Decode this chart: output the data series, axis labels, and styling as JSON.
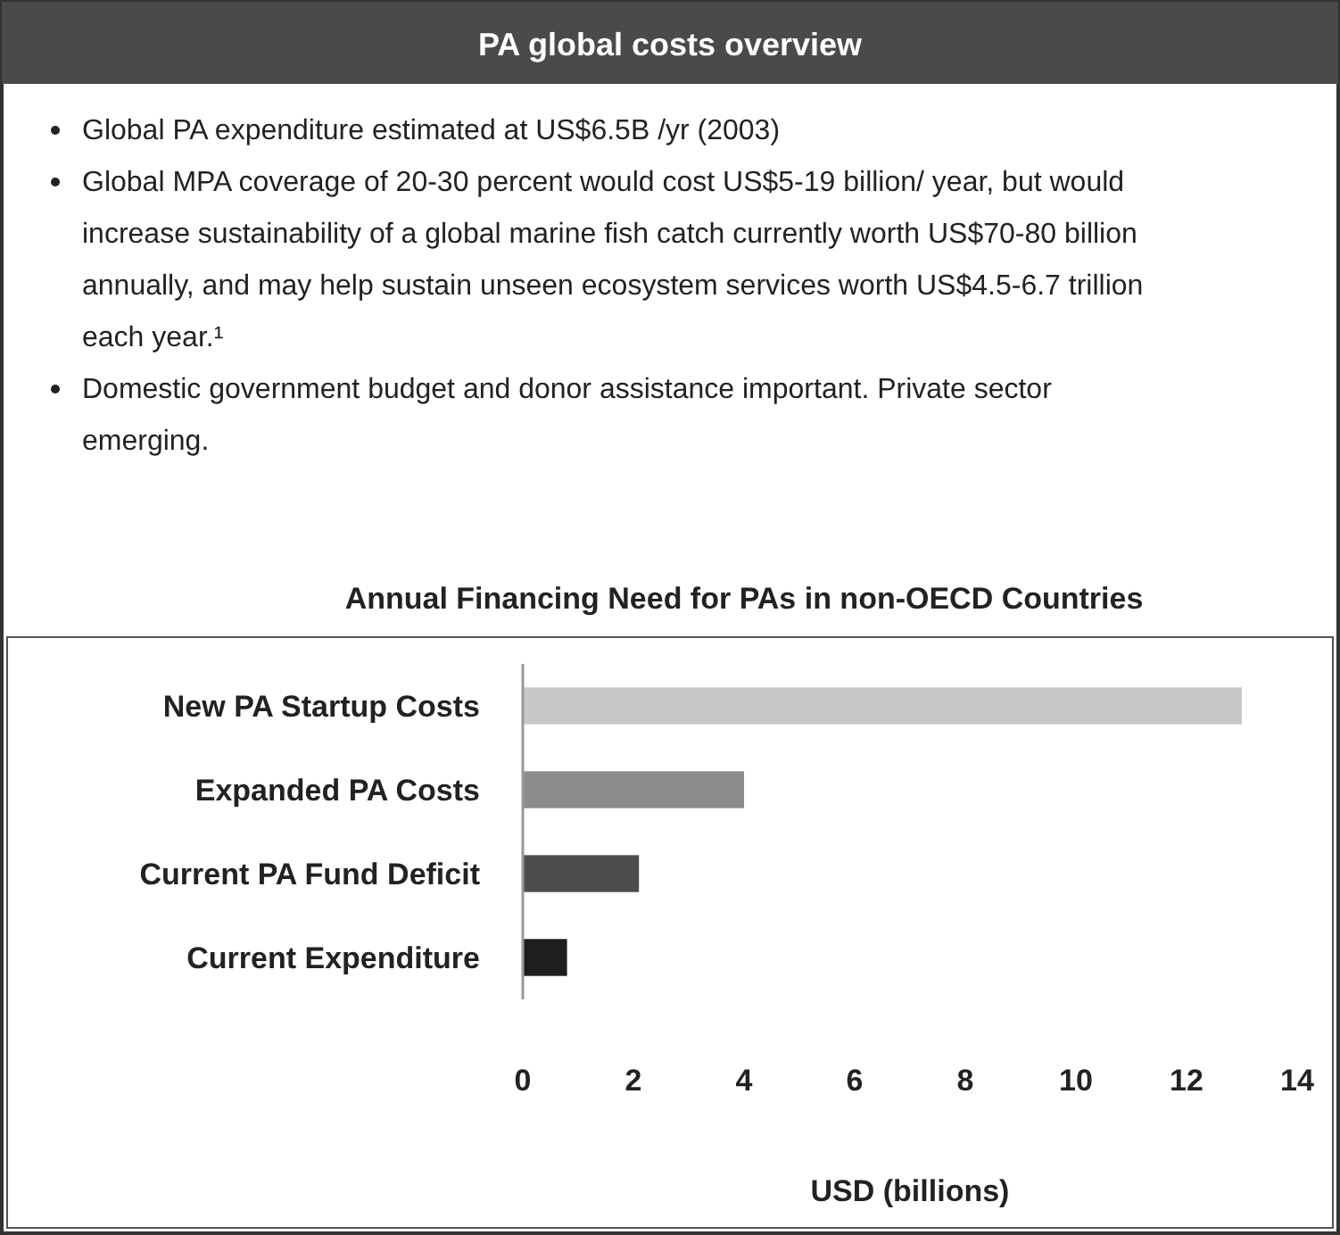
{
  "chart_data": {
    "type": "bar",
    "orientation": "horizontal",
    "title": "Annual Financing Need for PAs in non-OECD Countries",
    "xlabel": "USD (billions)",
    "categories": [
      "New PA Startup Costs",
      "Expanded PA Costs",
      "Current PA Fund Deficit",
      "Current Expenditure"
    ],
    "values": [
      13,
      4,
      2.1,
      0.8
    ],
    "colors": [
      "#c8c8c8",
      "#8c8c8c",
      "#4d4d4d",
      "#1e1e1e"
    ],
    "xlim": [
      0,
      14
    ],
    "xticks": [
      0,
      2,
      4,
      6,
      8,
      10,
      12,
      14
    ],
    "grid": false,
    "annotations": [
      "PA global costs overview",
      "Global PA expenditure estimated at US$6.5B /yr (2003)",
      "Global MPA coverage of 20-30 percent would cost US$5-19 billion/ year, but would increase sustainability of a global marine fish catch currently worth US$70-80 billion annually, and may help sustain unseen ecosystem services worth US$4.5-6.7 trillion each year.¹",
      "Domestic government budget and donor assistance important. Private sector emerging."
    ]
  }
}
